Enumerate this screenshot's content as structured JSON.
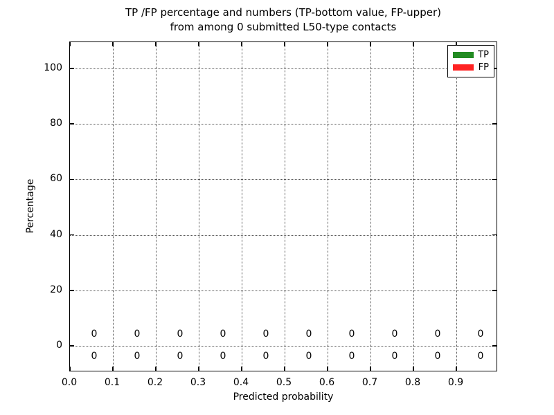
{
  "figure": {
    "title_line1": "TP /FP percentage and numbers (TP-bottom value, FP-upper)",
    "title_line2": "from among 0 submitted L50-type contacts"
  },
  "chart_data": {
    "type": "bar",
    "title": "TP /FP percentage and numbers (TP-bottom value, FP-upper) from among 0 submitted L50-type contacts",
    "xlabel": "Predicted probability",
    "ylabel": "Percentage",
    "xlim": [
      0.0,
      1.0
    ],
    "ylim": [
      -9.5,
      109.5
    ],
    "xticks": [
      0.0,
      0.1,
      0.2,
      0.3,
      0.4,
      0.5,
      0.6,
      0.7,
      0.8,
      0.9
    ],
    "xtick_labels": [
      "0.0",
      "0.1",
      "0.2",
      "0.3",
      "0.4",
      "0.5",
      "0.6",
      "0.7",
      "0.8",
      "0.9"
    ],
    "yticks": [
      0,
      20,
      40,
      60,
      80,
      100
    ],
    "ytick_labels": [
      "0",
      "20",
      "40",
      "60",
      "80",
      "100"
    ],
    "grid": true,
    "grid_style": "dotted",
    "bin_centers": [
      0.05,
      0.15,
      0.25,
      0.35,
      0.45,
      0.55,
      0.65,
      0.75,
      0.85,
      0.95
    ],
    "series": [
      {
        "name": "TP",
        "color": "#228b22",
        "label_row": "bottom",
        "values": [
          0,
          0,
          0,
          0,
          0,
          0,
          0,
          0,
          0,
          0
        ]
      },
      {
        "name": "FP",
        "color": "#ff2222",
        "label_row": "upper",
        "values": [
          0,
          0,
          0,
          0,
          0,
          0,
          0,
          0,
          0,
          0
        ]
      }
    ],
    "legend": {
      "position": "upper right",
      "entries": [
        {
          "label": "TP",
          "color": "#228b22"
        },
        {
          "label": "FP",
          "color": "#ff2222"
        }
      ]
    }
  }
}
